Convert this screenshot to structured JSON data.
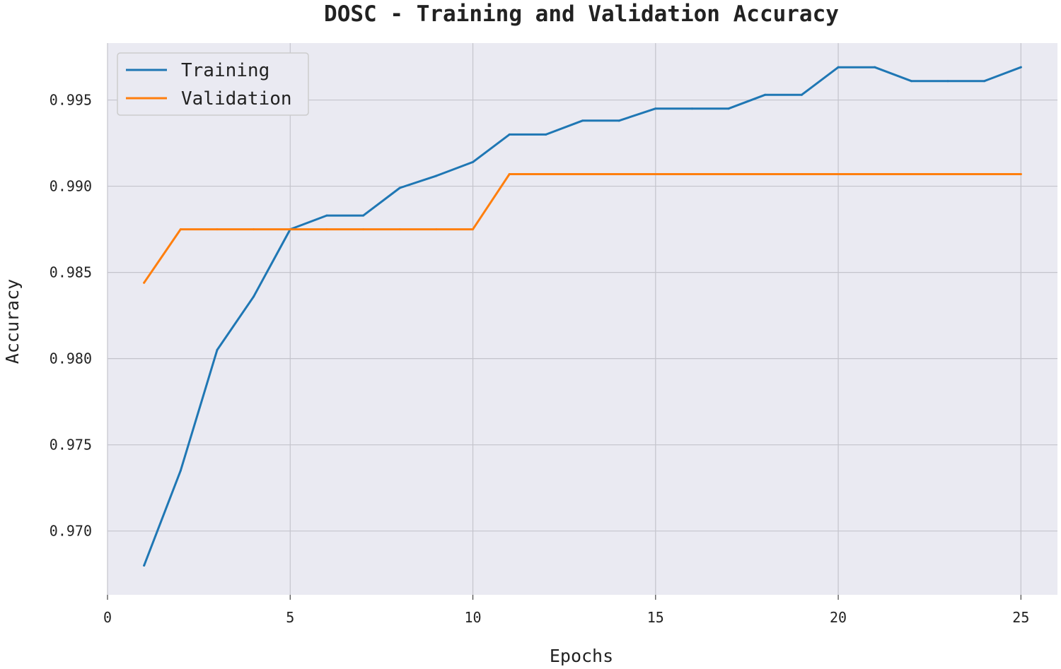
{
  "chart_data": {
    "type": "line",
    "title": "DOSC - Training and Validation Accuracy",
    "xlabel": "Epochs",
    "ylabel": "Accuracy",
    "xlim": [
      0,
      26
    ],
    "ylim": [
      0.9663,
      0.9983
    ],
    "x_ticks": [
      "0",
      "5",
      "10",
      "15",
      "20",
      "25"
    ],
    "x_tick_values": [
      0,
      5,
      10,
      15,
      20,
      25
    ],
    "y_ticks": [
      "0.970",
      "0.975",
      "0.980",
      "0.985",
      "0.990",
      "0.995"
    ],
    "y_tick_values": [
      0.97,
      0.975,
      0.98,
      0.985,
      0.99,
      0.995
    ],
    "grid": true,
    "legend_position": "upper-left",
    "x": [
      1,
      2,
      3,
      4,
      5,
      6,
      7,
      8,
      9,
      10,
      11,
      12,
      13,
      14,
      15,
      16,
      17,
      18,
      19,
      20,
      21,
      22,
      23,
      24,
      25
    ],
    "series": [
      {
        "name": "Training",
        "color": "#1f77b4",
        "values": [
          0.968,
          0.9735,
          0.9805,
          0.9836,
          0.9875,
          0.9883,
          0.9883,
          0.9899,
          0.9906,
          0.9914,
          0.993,
          0.993,
          0.9938,
          0.9938,
          0.9945,
          0.9945,
          0.9945,
          0.9953,
          0.9953,
          0.9969,
          0.9969,
          0.9961,
          0.9961,
          0.9961,
          0.9969
        ]
      },
      {
        "name": "Validation",
        "color": "#ff7f0e",
        "values": [
          0.9844,
          0.9875,
          0.9875,
          0.9875,
          0.9875,
          0.9875,
          0.9875,
          0.9875,
          0.9875,
          0.9875,
          0.9907,
          0.9907,
          0.9907,
          0.9907,
          0.9907,
          0.9907,
          0.9907,
          0.9907,
          0.9907,
          0.9907,
          0.9907,
          0.9907,
          0.9907,
          0.9907,
          0.9907
        ]
      }
    ],
    "colors": {
      "plot_background": "#eaeaf2",
      "grid": "#c4c4cc",
      "text": "#222222"
    }
  }
}
